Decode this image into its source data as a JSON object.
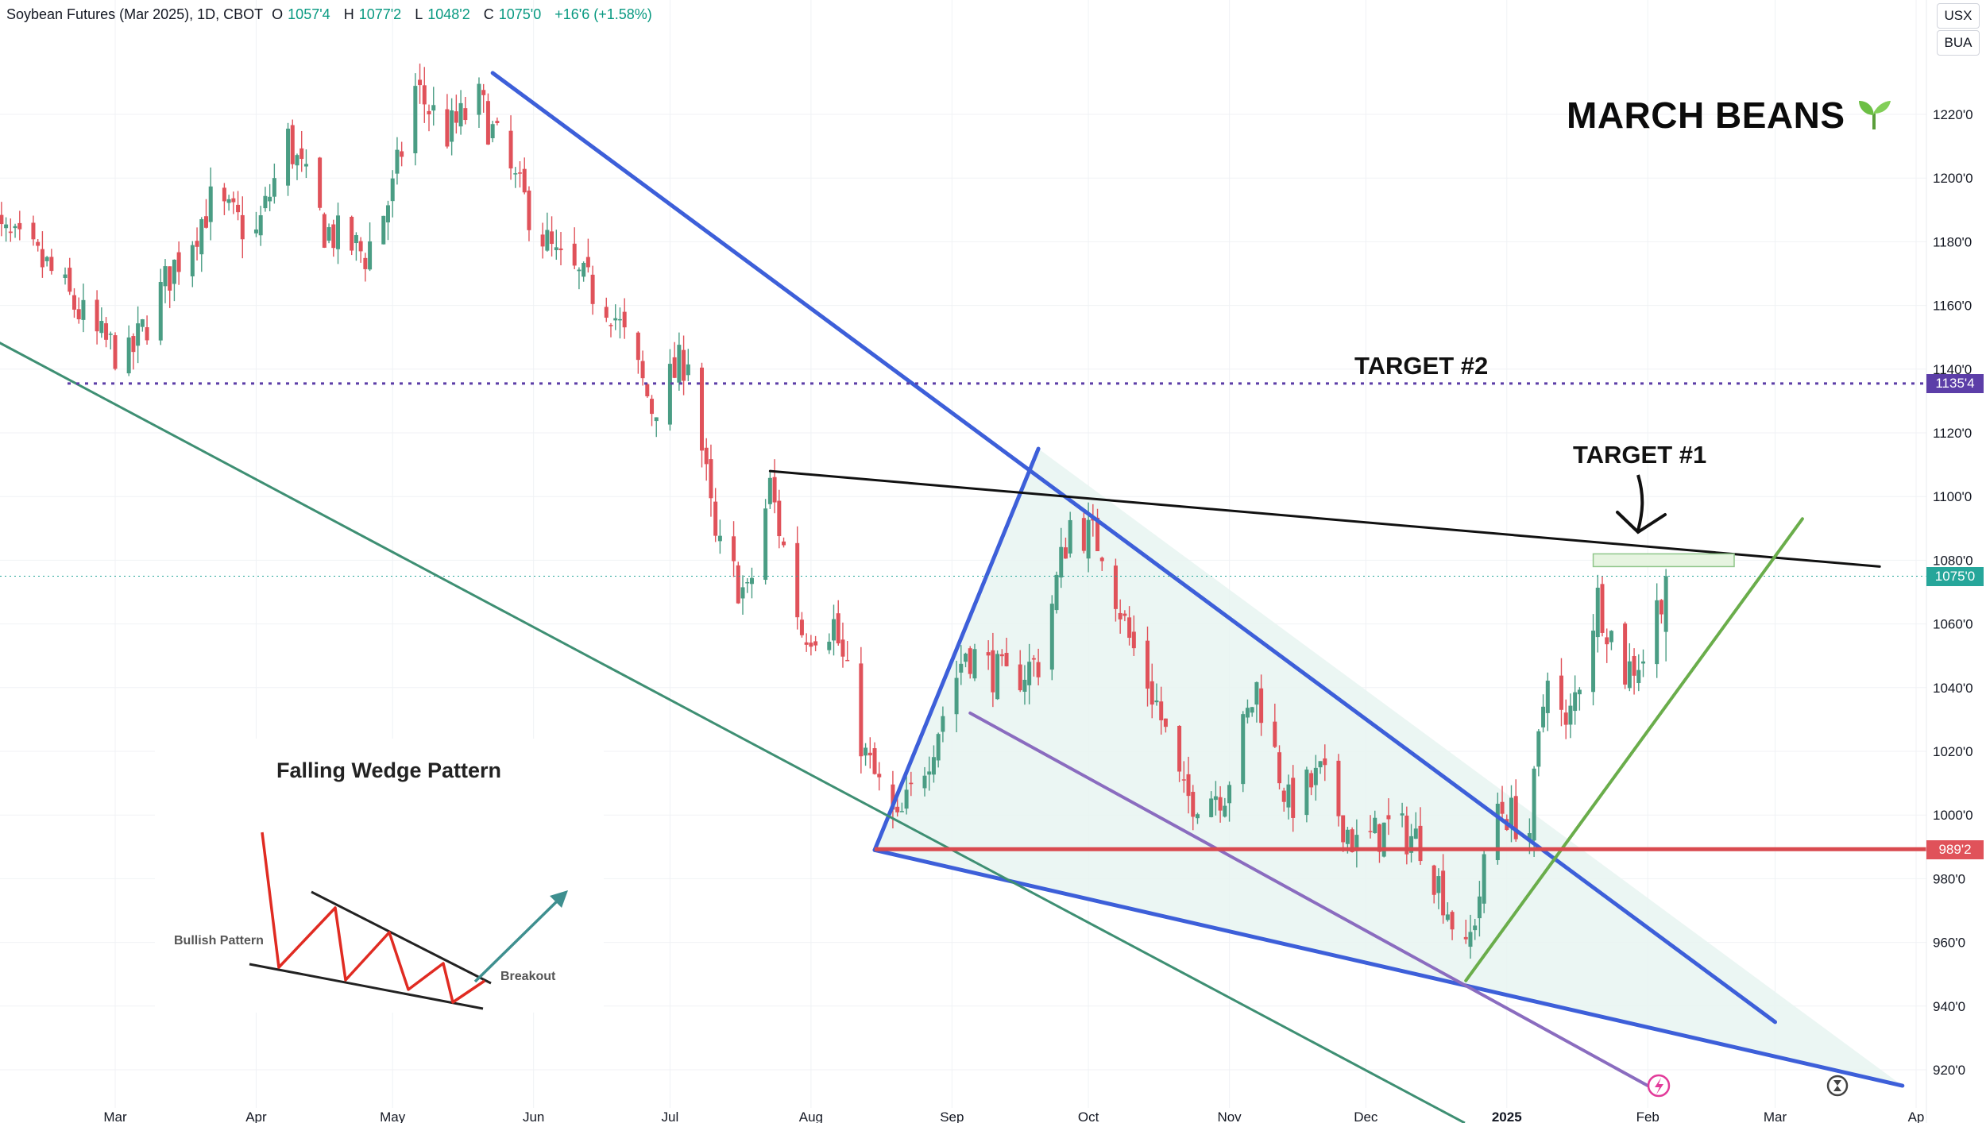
{
  "header": {
    "symbol": "Soybean Futures (Mar 2025), 1D, CBOT",
    "o_label": "O",
    "open": "1057'4",
    "h_label": "H",
    "high": "1077'2",
    "l_label": "L",
    "low": "1048'2",
    "c_label": "C",
    "close": "1075'0",
    "change": "+16'6 (+1.58%)"
  },
  "toolbar": {
    "unit_label": "USX",
    "session_label": "BUA"
  },
  "brand": {
    "title": "MARCH BEANS",
    "icon": "seedling-icon"
  },
  "annotations": {
    "target1": "TARGET #1",
    "target2": "TARGET #2",
    "inset_title": "Falling Wedge Pattern",
    "inset_bullish": "Bullish Pattern",
    "inset_breakout": "Breakout"
  },
  "price_tags": {
    "target2": "1135'4",
    "last": "1075'0",
    "support": "989'2"
  },
  "colors": {
    "up": "#4a9d84",
    "down": "#e0525a",
    "wedge": "#3d5fd9",
    "wedge_fill": "#e8f5f1",
    "resistance": "#111111",
    "support": "#d94a4f",
    "channel": "#3e8f73",
    "uptrend": "#6aad4b",
    "inner": "#8a6cbf",
    "target2": "#5c3ea8"
  },
  "chart_data": {
    "type": "candlestick",
    "title": "Soybean Futures (Mar 2025), 1D, CBOT",
    "xlabel": "",
    "ylabel": "",
    "ylim": [
      910,
      1245
    ],
    "y_ticks": [
      "920'0",
      "940'0",
      "960'0",
      "980'0",
      "1000'0",
      "1020'0",
      "1040'0",
      "1060'0",
      "1080'0",
      "1100'0",
      "1120'0",
      "1140'0",
      "1160'0",
      "1180'0",
      "1200'0",
      "1220'0"
    ],
    "y_tick_values": [
      920,
      940,
      960,
      980,
      1000,
      1020,
      1040,
      1060,
      1080,
      1100,
      1120,
      1140,
      1160,
      1180,
      1200,
      1220
    ],
    "x_ticks": [
      "Mar",
      "Apr",
      "May",
      "Jun",
      "Jul",
      "Aug",
      "Sep",
      "Oct",
      "Nov",
      "Dec",
      "2025",
      "Feb",
      "Mar",
      "Ap"
    ],
    "x_tick_dates": [
      "2024-03-01",
      "2024-04-01",
      "2024-05-01",
      "2024-06-01",
      "2024-07-01",
      "2024-08-01",
      "2024-09-01",
      "2024-10-01",
      "2024-11-01",
      "2024-12-01",
      "2025-01-01",
      "2025-02-01",
      "2025-03-01",
      "2025-04-01"
    ],
    "x_range": [
      "2024-02-01",
      "2025-04-01"
    ],
    "anchors": [
      {
        "date": "2024-02-01",
        "close": 1186
      },
      {
        "date": "2024-02-15",
        "close": 1172
      },
      {
        "date": "2024-02-26",
        "close": 1150
      },
      {
        "date": "2024-03-04",
        "close": 1143
      },
      {
        "date": "2024-03-13",
        "close": 1170
      },
      {
        "date": "2024-03-22",
        "close": 1192
      },
      {
        "date": "2024-04-01",
        "close": 1182
      },
      {
        "date": "2024-04-08",
        "close": 1212
      },
      {
        "date": "2024-04-16",
        "close": 1184
      },
      {
        "date": "2024-04-25",
        "close": 1176
      },
      {
        "date": "2024-05-01",
        "close": 1196
      },
      {
        "date": "2024-05-06",
        "close": 1228
      },
      {
        "date": "2024-05-13",
        "close": 1214
      },
      {
        "date": "2024-05-20",
        "close": 1224
      },
      {
        "date": "2024-05-28",
        "close": 1198
      },
      {
        "date": "2024-06-06",
        "close": 1174
      },
      {
        "date": "2024-06-18",
        "close": 1160
      },
      {
        "date": "2024-06-27",
        "close": 1128
      },
      {
        "date": "2024-07-05",
        "close": 1145
      },
      {
        "date": "2024-07-11",
        "close": 1085
      },
      {
        "date": "2024-07-18",
        "close": 1068
      },
      {
        "date": "2024-07-23",
        "close": 1103
      },
      {
        "date": "2024-07-30",
        "close": 1058
      },
      {
        "date": "2024-08-06",
        "close": 1060
      },
      {
        "date": "2024-08-13",
        "close": 1018
      },
      {
        "date": "2024-08-20",
        "close": 996
      },
      {
        "date": "2024-08-27",
        "close": 1020
      },
      {
        "date": "2024-09-04",
        "close": 1052
      },
      {
        "date": "2024-09-13",
        "close": 1042
      },
      {
        "date": "2024-09-20",
        "close": 1048
      },
      {
        "date": "2024-09-27",
        "close": 1092
      },
      {
        "date": "2024-10-04",
        "close": 1085
      },
      {
        "date": "2024-10-10",
        "close": 1055
      },
      {
        "date": "2024-10-16",
        "close": 1035
      },
      {
        "date": "2024-10-22",
        "close": 1005
      },
      {
        "date": "2024-10-31",
        "close": 1008
      },
      {
        "date": "2024-11-07",
        "close": 1040
      },
      {
        "date": "2024-11-14",
        "close": 1003
      },
      {
        "date": "2024-11-21",
        "close": 1012
      },
      {
        "date": "2024-11-29",
        "close": 990
      },
      {
        "date": "2024-12-06",
        "close": 996
      },
      {
        "date": "2024-12-13",
        "close": 992
      },
      {
        "date": "2024-12-18",
        "close": 975
      },
      {
        "date": "2024-12-23",
        "close": 955
      },
      {
        "date": "2024-12-30",
        "close": 1003
      },
      {
        "date": "2025-01-06",
        "close": 995
      },
      {
        "date": "2025-01-10",
        "close": 1048
      },
      {
        "date": "2025-01-14",
        "close": 1025
      },
      {
        "date": "2025-01-21",
        "close": 1068
      },
      {
        "date": "2025-01-27",
        "close": 1045
      },
      {
        "date": "2025-01-31",
        "close": 1050
      },
      {
        "date": "2025-02-05",
        "close": 1075
      }
    ],
    "last_candle": {
      "date": "2025-02-05",
      "open": 1057.5,
      "high": 1077.25,
      "low": 1048.25,
      "close": 1075.0
    },
    "horizontal_lines": [
      {
        "label": "TARGET #2",
        "value": 1135.5,
        "style": "dotted"
      },
      {
        "value": 989.25,
        "style": "solid"
      },
      {
        "value": 1075.0,
        "style": "dotted-thin"
      }
    ],
    "trend_lines": [
      {
        "name": "falling-wedge-upper",
        "from": [
          "2024-05-23",
          1233
        ],
        "to": [
          "2025-03-01",
          935
        ]
      },
      {
        "name": "falling-wedge-lower",
        "from": [
          "2024-08-15",
          989
        ],
        "to": [
          "2025-03-29",
          915
        ]
      },
      {
        "name": "wedge-breakout-leg",
        "from": [
          "2024-08-15",
          989
        ],
        "to": [
          "2024-09-20",
          1115
        ]
      },
      {
        "name": "resistance",
        "from": [
          "2024-07-23",
          1108
        ],
        "to": [
          "2025-03-24",
          1078
        ]
      },
      {
        "name": "long-channel",
        "from": [
          "2024-02-01",
          1151
        ],
        "to": [
          "2024-12-10",
          913
        ]
      },
      {
        "name": "inner-support",
        "from": [
          "2024-09-05",
          1032
        ],
        "to": [
          "2025-02-01",
          915
        ]
      },
      {
        "name": "uptrend",
        "from": [
          "2024-12-23",
          948
        ],
        "to": [
          "2025-03-07",
          1093
        ]
      }
    ],
    "target_zone": {
      "label": "TARGET #1",
      "from": "2025-01-20",
      "to": "2025-02-20",
      "low": 1078,
      "high": 1082
    }
  }
}
